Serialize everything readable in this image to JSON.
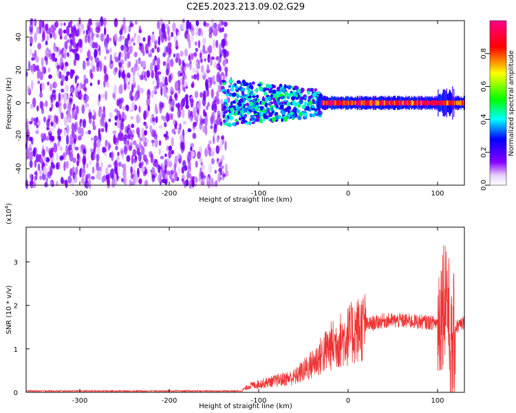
{
  "title": "C2E5.2023.213.09.02.G29",
  "chart_data": [
    {
      "type": "heatmap",
      "xlabel": "Height of straight line (km)",
      "ylabel": "Frequency (Hz)",
      "xlim": [
        -360,
        130
      ],
      "ylim": [
        -50,
        50
      ],
      "xticks": [
        -300,
        -200,
        -100,
        0,
        100
      ],
      "yticks": [
        -40,
        -20,
        0,
        20,
        40
      ],
      "colorbar": {
        "label": "Normalized spectral amplitude",
        "range": [
          0.0,
          1.0
        ],
        "ticks": [
          "0.0",
          "0.2",
          "0.4",
          "0.6",
          "0.8"
        ],
        "colormap": [
          "#f0d8ff",
          "#8800ff",
          "#0000ff",
          "#00ffff",
          "#00ff00",
          "#ffff00",
          "#ff0000",
          "#ff00aa"
        ]
      },
      "regions": [
        {
          "x": [
            -360,
            -140
          ],
          "description_level": 0.2,
          "frequency_spread": [
            -50,
            50
          ]
        },
        {
          "x": [
            -140,
            -30
          ],
          "description_level": 0.45,
          "frequency_spread": [
            -12,
            12
          ]
        },
        {
          "x": [
            -30,
            130
          ],
          "description_level": 0.95,
          "frequency_spread": [
            -3,
            3
          ]
        }
      ],
      "grid": false
    },
    {
      "type": "line",
      "xlabel": "Height of straight line (km)",
      "ylabel": "SNR (10 * v/v)",
      "y_multiplier": "(x10^4)",
      "xlim": [
        -360,
        130
      ],
      "ylim": [
        0,
        38000
      ],
      "xticks": [
        -300,
        -200,
        -100,
        0,
        100
      ],
      "yticks": [
        0,
        1,
        2,
        3
      ],
      "series": [
        {
          "color": "#ee3333",
          "envelope_x": [
            -360,
            -120,
            -110,
            -60,
            -40,
            -20,
            0,
            20,
            40,
            60,
            80,
            100,
            105,
            110,
            115,
            120,
            130
          ],
          "envelope_y": [
            300,
            300,
            1500,
            3500,
            6500,
            10500,
            13000,
            15500,
            16500,
            16500,
            16200,
            16000,
            20000,
            25000,
            8000,
            15000,
            16000
          ]
        }
      ],
      "grid": false
    }
  ]
}
